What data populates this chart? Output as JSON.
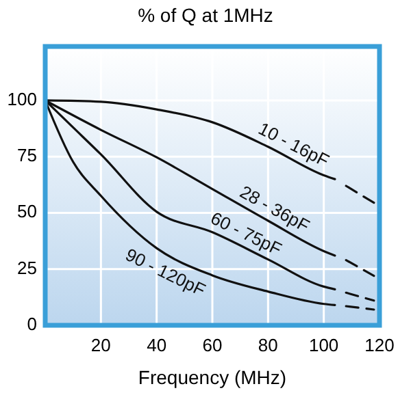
{
  "chart_data": {
    "type": "line",
    "title": "% of Q at 1MHz",
    "xlabel": "Frequency (MHz)",
    "xlim": [
      0,
      120
    ],
    "xticks": [
      20,
      40,
      60,
      80,
      100,
      120
    ],
    "ylim": [
      0,
      124
    ],
    "yticks": [
      0,
      25,
      50,
      75,
      100
    ],
    "grid": true,
    "marker": "none",
    "series": [
      {
        "name": "10 - 16pF",
        "color": "#111111",
        "line_style": "solid",
        "x": [
          0,
          20,
          40,
          60,
          80,
          100,
          104
        ],
        "values": [
          100,
          99.4,
          96,
          90.3,
          79.4,
          66.7,
          65
        ]
      },
      {
        "name": "28 - 36pF",
        "color": "#111111",
        "line_style": "solid",
        "x": [
          0,
          20,
          40,
          60,
          80,
          100,
          104
        ],
        "values": [
          100,
          86.9,
          74.7,
          60.6,
          46.5,
          33,
          31
        ]
      },
      {
        "name": "60 - 75pF",
        "color": "#111111",
        "line_style": "solid",
        "x": [
          0,
          10,
          20,
          40,
          60,
          80,
          100,
          104
        ],
        "values": [
          100,
          88,
          76,
          50.5,
          41.4,
          29.3,
          17.2,
          16
        ]
      },
      {
        "name": "90 - 120pF",
        "color": "#111111",
        "line_style": "solid",
        "x": [
          0,
          10,
          20,
          40,
          60,
          80,
          100,
          104
        ],
        "values": [
          100,
          72.7,
          57.6,
          34.3,
          22.2,
          15,
          9.5,
          9
        ]
      },
      {
        "color": "#111111",
        "line_style": "dashed",
        "x": [
          108,
          118
        ],
        "values": [
          62,
          54.5
        ]
      },
      {
        "color": "#111111",
        "line_style": "dashed",
        "x": [
          108,
          118
        ],
        "values": [
          29,
          22
        ]
      },
      {
        "color": "#111111",
        "line_style": "dashed",
        "x": [
          108,
          118
        ],
        "values": [
          14.5,
          11
        ]
      },
      {
        "color": "#111111",
        "line_style": "dashed",
        "x": [
          108,
          118
        ],
        "values": [
          8.5,
          7
        ]
      }
    ]
  }
}
